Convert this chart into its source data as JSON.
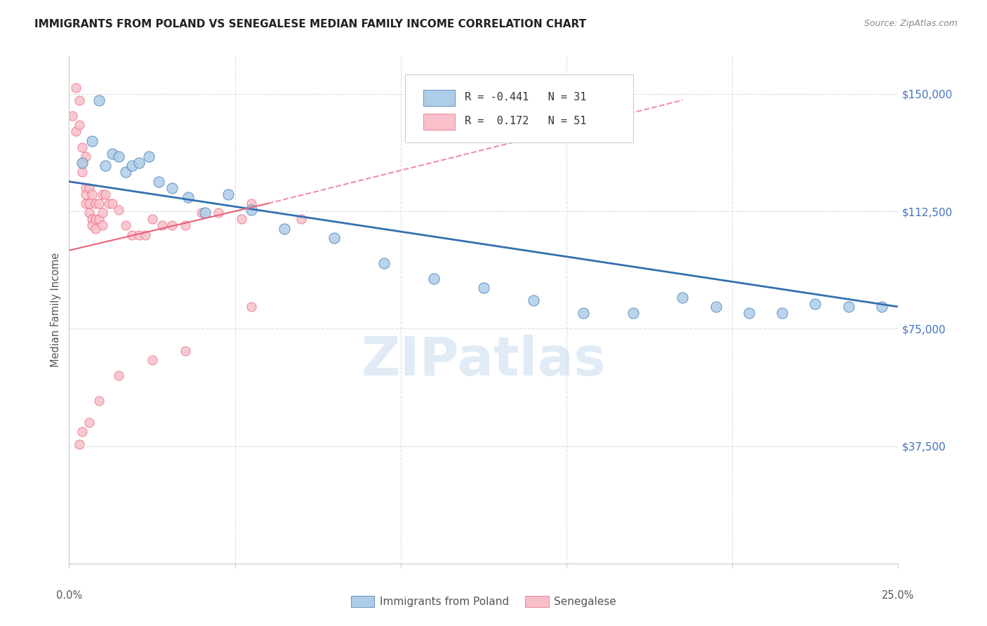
{
  "title": "IMMIGRANTS FROM POLAND VS SENEGALESE MEDIAN FAMILY INCOME CORRELATION CHART",
  "source": "Source: ZipAtlas.com",
  "ylabel": "Median Family Income",
  "y_ticks": [
    37500,
    75000,
    112500,
    150000
  ],
  "y_tick_labels": [
    "$37,500",
    "$75,000",
    "$112,500",
    "$150,000"
  ],
  "x_min": 0.0,
  "x_max": 0.25,
  "y_min": 0,
  "y_max": 162000,
  "watermark": "ZIPatlas",
  "legend_blue_r": "R = -0.441",
  "legend_blue_n": "N = 31",
  "legend_pink_r": "R =  0.172",
  "legend_pink_n": "N = 51",
  "blue_color": "#AECDE8",
  "pink_color": "#F9C0CB",
  "blue_line_color": "#3470B0",
  "pink_line_color": "#E8607A",
  "blue_scatter_x": [
    0.004,
    0.007,
    0.009,
    0.011,
    0.013,
    0.015,
    0.017,
    0.019,
    0.021,
    0.024,
    0.027,
    0.031,
    0.036,
    0.041,
    0.048,
    0.055,
    0.065,
    0.08,
    0.095,
    0.11,
    0.125,
    0.14,
    0.155,
    0.17,
    0.185,
    0.195,
    0.205,
    0.215,
    0.225,
    0.235,
    0.245
  ],
  "blue_scatter_y": [
    128000,
    135000,
    148000,
    127000,
    131000,
    130000,
    125000,
    127000,
    128000,
    130000,
    122000,
    120000,
    117000,
    112000,
    118000,
    113000,
    107000,
    104000,
    96000,
    91000,
    88000,
    84000,
    80000,
    80000,
    85000,
    82000,
    80000,
    80000,
    83000,
    82000,
    82000
  ],
  "pink_scatter_x": [
    0.001,
    0.002,
    0.002,
    0.003,
    0.003,
    0.004,
    0.004,
    0.004,
    0.005,
    0.005,
    0.005,
    0.005,
    0.006,
    0.006,
    0.006,
    0.007,
    0.007,
    0.007,
    0.008,
    0.008,
    0.008,
    0.009,
    0.009,
    0.01,
    0.01,
    0.01,
    0.011,
    0.012,
    0.013,
    0.015,
    0.017,
    0.019,
    0.021,
    0.023,
    0.025,
    0.028,
    0.031,
    0.035,
    0.04,
    0.045,
    0.052,
    0.055,
    0.07,
    0.055,
    0.035,
    0.025,
    0.015,
    0.009,
    0.006,
    0.004,
    0.003
  ],
  "pink_scatter_y": [
    143000,
    152000,
    138000,
    148000,
    140000,
    133000,
    128000,
    125000,
    130000,
    120000,
    118000,
    115000,
    120000,
    115000,
    112000,
    118000,
    110000,
    108000,
    115000,
    110000,
    107000,
    115000,
    110000,
    118000,
    112000,
    108000,
    118000,
    115000,
    115000,
    113000,
    108000,
    105000,
    105000,
    105000,
    110000,
    108000,
    108000,
    108000,
    112000,
    112000,
    110000,
    115000,
    110000,
    82000,
    68000,
    65000,
    60000,
    52000,
    45000,
    42000,
    38000
  ],
  "blue_marker_size": 120,
  "pink_marker_size": 90,
  "background_color": "#FFFFFF",
  "grid_color": "#DDDDDD",
  "axis_color": "#CCCCCC",
  "right_label_color": "#4472C4",
  "title_color": "#222222",
  "source_color": "#888888",
  "ylabel_color": "#555555"
}
